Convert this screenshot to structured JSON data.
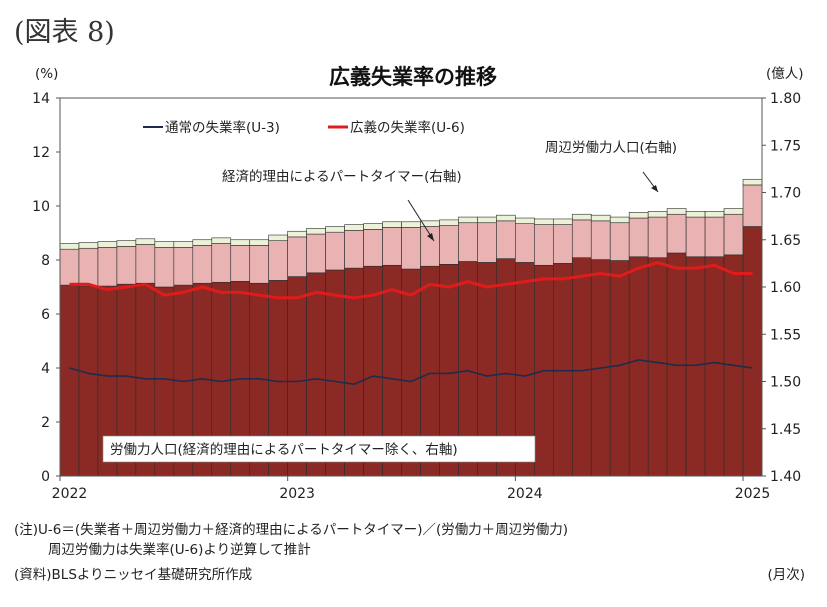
{
  "figure_label": "(図表 8)",
  "notes": {
    "line1": "(注)U-6＝(失業者＋周辺労働力＋経済的理由によるパートタイマー)／(労働力＋周辺労働力)",
    "line2": "周辺労働力は失業率(U-6)より逆算して推計",
    "source": "(資料)BLSよりニッセイ基礎研究所作成",
    "x_unit": "(月次)"
  },
  "chart_data": {
    "type": "bar",
    "title": "広義失業率の推移",
    "ylabel": "(%)",
    "y2label": "(億人)",
    "ylim": [
      0,
      14
    ],
    "yticks": [
      0,
      2,
      4,
      6,
      8,
      10,
      12,
      14
    ],
    "y2lim": [
      1.4,
      1.8
    ],
    "y2ticks": [
      "1.40",
      "1.45",
      "1.50",
      "1.55",
      "1.60",
      "1.65",
      "1.70",
      "1.75",
      "1.80"
    ],
    "x_tick_labels": [
      "2022",
      "2023",
      "2024",
      "2025"
    ],
    "x_tick_index": [
      0,
      12,
      24,
      36
    ],
    "months": [
      "2022-01",
      "2022-02",
      "2022-03",
      "2022-04",
      "2022-05",
      "2022-06",
      "2022-07",
      "2022-08",
      "2022-09",
      "2022-10",
      "2022-11",
      "2022-12",
      "2023-01",
      "2023-02",
      "2023-03",
      "2023-04",
      "2023-05",
      "2023-06",
      "2023-07",
      "2023-08",
      "2023-09",
      "2023-10",
      "2023-11",
      "2023-12",
      "2024-01",
      "2024-02",
      "2024-03",
      "2024-04",
      "2024-05",
      "2024-06",
      "2024-07",
      "2024-08",
      "2024-09",
      "2024-10",
      "2024-11",
      "2024-12",
      "2025-01"
    ],
    "colors": {
      "labor_force": "#8b2a24",
      "part_time": "#e9b3b3",
      "marginal": "#ecf2d8",
      "u3": "#1f2a4d",
      "u6": "#e01b1b"
    },
    "series": [
      {
        "name": "労働力人口(経済的理由によるパートタイマー除く、右軸)",
        "axis": "right",
        "values": [
          1.602,
          1.601,
          1.601,
          1.603,
          1.604,
          1.6,
          1.602,
          1.604,
          1.605,
          1.606,
          1.604,
          1.607,
          1.611,
          1.615,
          1.618,
          1.62,
          1.622,
          1.623,
          1.619,
          1.622,
          1.624,
          1.627,
          1.626,
          1.63,
          1.626,
          1.623,
          1.625,
          1.631,
          1.629,
          1.628,
          1.632,
          1.631,
          1.636,
          1.632,
          1.632,
          1.634,
          1.664
        ]
      },
      {
        "name": "経済的理由によるパートタイマー(右軸)",
        "axis": "right",
        "values": [
          0.038,
          0.04,
          0.041,
          0.04,
          0.041,
          0.042,
          0.04,
          0.04,
          0.041,
          0.038,
          0.04,
          0.042,
          0.042,
          0.041,
          0.04,
          0.04,
          0.039,
          0.04,
          0.044,
          0.042,
          0.041,
          0.041,
          0.042,
          0.04,
          0.041,
          0.043,
          0.041,
          0.04,
          0.041,
          0.04,
          0.041,
          0.043,
          0.041,
          0.042,
          0.042,
          0.043,
          0.044
        ]
      },
      {
        "name": "周辺労働力人口(右軸)",
        "axis": "right",
        "values": [
          0.006,
          0.006,
          0.006,
          0.006,
          0.006,
          0.006,
          0.006,
          0.006,
          0.006,
          0.006,
          0.006,
          0.006,
          0.006,
          0.006,
          0.006,
          0.006,
          0.006,
          0.006,
          0.006,
          0.006,
          0.006,
          0.006,
          0.006,
          0.006,
          0.006,
          0.006,
          0.006,
          0.006,
          0.006,
          0.006,
          0.006,
          0.006,
          0.006,
          0.006,
          0.006,
          0.006,
          0.006
        ]
      },
      {
        "name": "通常の失業率(U-3)",
        "axis": "left",
        "type": "line",
        "values": [
          4.0,
          3.8,
          3.7,
          3.7,
          3.6,
          3.6,
          3.5,
          3.6,
          3.5,
          3.6,
          3.6,
          3.5,
          3.5,
          3.6,
          3.5,
          3.4,
          3.7,
          3.6,
          3.5,
          3.8,
          3.8,
          3.9,
          3.7,
          3.8,
          3.7,
          3.9,
          3.9,
          3.9,
          4.0,
          4.1,
          4.3,
          4.2,
          4.1,
          4.1,
          4.2,
          4.1,
          4.0
        ]
      },
      {
        "name": "広義の失業率(U-6)",
        "axis": "left",
        "type": "line",
        "values": [
          7.1,
          7.1,
          6.9,
          7.0,
          7.1,
          6.7,
          6.8,
          7.0,
          6.8,
          6.8,
          6.7,
          6.6,
          6.6,
          6.8,
          6.7,
          6.6,
          6.7,
          6.9,
          6.7,
          7.1,
          7.0,
          7.2,
          7.0,
          7.1,
          7.2,
          7.3,
          7.3,
          7.4,
          7.5,
          7.4,
          7.7,
          7.9,
          7.7,
          7.7,
          7.8,
          7.5,
          7.5
        ]
      }
    ],
    "annotations": {
      "marginal": "周辺労働力人口(右軸)",
      "part_time": "経済的理由によるパートタイマー(右軸)",
      "labor_force": "労働力人口(経済的理由によるパートタイマー除く、右軸)"
    }
  }
}
